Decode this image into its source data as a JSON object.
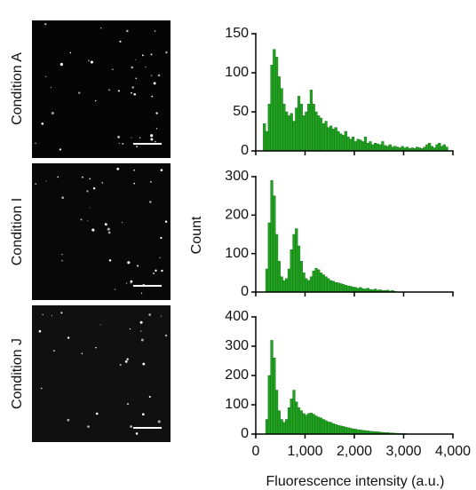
{
  "chart_data": [
    {
      "type": "histogram",
      "label": "Condition A",
      "color": "#22a022",
      "bins": [
        0,
        50,
        100,
        150,
        200,
        250,
        300,
        350,
        400,
        450,
        500,
        550,
        600,
        650,
        700,
        750,
        800,
        850,
        900,
        950,
        1000,
        1050,
        1100,
        1150,
        1200,
        1250,
        1300,
        1350,
        1400,
        1450,
        1500,
        1550,
        1600,
        1650,
        1700,
        1750,
        1800,
        1850,
        1900,
        1950,
        2000,
        2050,
        2100,
        2150,
        2200,
        2250,
        2300,
        2350,
        2400,
        2450,
        2500,
        2550,
        2600,
        2650,
        2700,
        2750,
        2800,
        2850,
        2900,
        2950,
        3000,
        3050,
        3100,
        3150,
        3200,
        3250,
        3300,
        3350,
        3400,
        3450,
        3500,
        3550,
        3600,
        3650,
        3700,
        3750,
        3800,
        3850,
        3900,
        3950,
        4000
      ],
      "values": [
        0,
        0,
        0,
        35,
        25,
        60,
        110,
        130,
        120,
        95,
        80,
        60,
        50,
        45,
        48,
        38,
        55,
        70,
        60,
        45,
        50,
        60,
        78,
        60,
        50,
        45,
        42,
        35,
        38,
        30,
        32,
        28,
        30,
        25,
        22,
        20,
        25,
        18,
        15,
        18,
        12,
        15,
        14,
        12,
        18,
        10,
        12,
        8,
        10,
        9,
        8,
        12,
        7,
        6,
        8,
        5,
        6,
        5,
        4,
        6,
        4,
        5,
        3,
        4,
        3,
        5,
        4,
        3,
        5,
        8,
        10,
        6,
        4,
        8,
        10,
        6,
        8,
        5,
        0,
        0
      ],
      "xlim": [
        0,
        4000
      ],
      "xticks": [
        0,
        1000,
        2000,
        3000,
        4000
      ],
      "ylim": [
        0,
        150
      ],
      "yticks": [
        0,
        50,
        100,
        150
      ]
    },
    {
      "type": "histogram",
      "label": "Condition I",
      "color": "#22a022",
      "ylabel": "Count",
      "bins": [
        0,
        50,
        100,
        150,
        200,
        250,
        300,
        350,
        400,
        450,
        500,
        550,
        600,
        650,
        700,
        750,
        800,
        850,
        900,
        950,
        1000,
        1050,
        1100,
        1150,
        1200,
        1250,
        1300,
        1350,
        1400,
        1450,
        1500,
        1550,
        1600,
        1650,
        1700,
        1750,
        1800,
        1850,
        1900,
        1950,
        2000,
        2050,
        2100,
        2150,
        2200,
        2250,
        2300,
        2350,
        2400,
        2450,
        2500,
        2550,
        2600,
        2650,
        2700,
        2750,
        2800,
        2850,
        2900,
        2950,
        3000,
        3050,
        3100,
        3150,
        3200,
        3250,
        3300,
        3350,
        3400,
        3450,
        3500,
        3550,
        3600,
        3650,
        3700,
        3750,
        3800,
        3850,
        3900,
        3950,
        4000
      ],
      "values": [
        0,
        0,
        0,
        0,
        60,
        180,
        290,
        250,
        150,
        80,
        40,
        30,
        35,
        60,
        110,
        150,
        165,
        120,
        80,
        50,
        35,
        30,
        40,
        55,
        62,
        58,
        50,
        45,
        40,
        35,
        30,
        28,
        25,
        24,
        22,
        20,
        18,
        16,
        15,
        13,
        12,
        10,
        12,
        9,
        8,
        10,
        7,
        6,
        8,
        5,
        6,
        4,
        4,
        5,
        3,
        4,
        2,
        0,
        0,
        0,
        0,
        0,
        0,
        0,
        0,
        0,
        0,
        0,
        0,
        0,
        0,
        0,
        0,
        0,
        0,
        0,
        0,
        0,
        0,
        0
      ],
      "xlim": [
        0,
        4000
      ],
      "xticks": [
        0,
        1000,
        2000,
        3000,
        4000
      ],
      "ylim": [
        0,
        300
      ],
      "yticks": [
        0,
        100,
        200,
        300
      ]
    },
    {
      "type": "histogram",
      "label": "Condition J",
      "color": "#22a022",
      "xlabel": "Fluorescence intensity (a.u.)",
      "bins": [
        0,
        50,
        100,
        150,
        200,
        250,
        300,
        350,
        400,
        450,
        500,
        550,
        600,
        650,
        700,
        750,
        800,
        850,
        900,
        950,
        1000,
        1050,
        1100,
        1150,
        1200,
        1250,
        1300,
        1350,
        1400,
        1450,
        1500,
        1550,
        1600,
        1650,
        1700,
        1750,
        1800,
        1850,
        1900,
        1950,
        2000,
        2050,
        2100,
        2150,
        2200,
        2250,
        2300,
        2350,
        2400,
        2450,
        2500,
        2550,
        2600,
        2650,
        2700,
        2750,
        2800,
        2850,
        2900,
        2950,
        3000,
        3050,
        3100,
        3150,
        3200,
        3250,
        3300,
        3350,
        3400,
        3450,
        3500,
        3550,
        3600,
        3650,
        3700,
        3750,
        3800,
        3850,
        3900,
        3950,
        4000
      ],
      "values": [
        0,
        0,
        0,
        0,
        50,
        200,
        320,
        260,
        150,
        80,
        50,
        40,
        50,
        90,
        120,
        150,
        110,
        90,
        80,
        70,
        65,
        70,
        72,
        68,
        62,
        58,
        55,
        50,
        46,
        42,
        40,
        36,
        33,
        30,
        28,
        26,
        24,
        22,
        20,
        18,
        17,
        15,
        14,
        13,
        12,
        11,
        10,
        9,
        8,
        8,
        7,
        6,
        5,
        5,
        4,
        4,
        3,
        3,
        2,
        2,
        2,
        1,
        1,
        1,
        1,
        1,
        0,
        0,
        0,
        0,
        0,
        0,
        0,
        0,
        0,
        0,
        0,
        0,
        0,
        0
      ],
      "xlim": [
        0,
        4000
      ],
      "xticks": [
        0,
        {
          "value": 1000,
          "label": "1,000"
        },
        {
          "value": 2000,
          "label": "2,000"
        },
        {
          "value": 3000,
          "label": "3,000"
        },
        {
          "value": 4000,
          "label": "4,000"
        }
      ],
      "ylim": [
        0,
        400
      ],
      "yticks": [
        0,
        100,
        200,
        300,
        400
      ]
    }
  ]
}
